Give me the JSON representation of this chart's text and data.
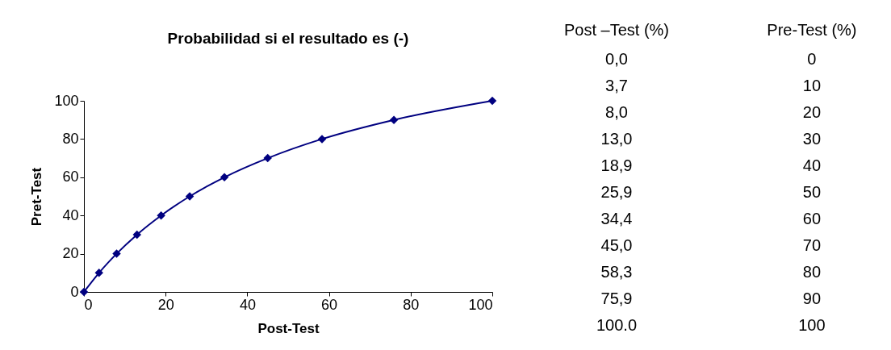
{
  "chart_data": {
    "type": "line",
    "title": "Probabilidad si el resultado es (-)",
    "xlabel": "Post-Test",
    "ylabel": "Pret-Test",
    "x": [
      0,
      3.7,
      8.0,
      13.0,
      18.9,
      25.9,
      34.4,
      45.0,
      58.3,
      75.9,
      100
    ],
    "series": [
      {
        "color": "#000080",
        "values": [
          0,
          10,
          20,
          30,
          40,
          50,
          60,
          70,
          80,
          90,
          100
        ]
      }
    ],
    "annotations": [
      "Post –Test (%)",
      "Pre-Test (%)",
      "0,0",
      "3,7",
      "8,0",
      "13,0",
      "18,9",
      "25,9",
      "34,4",
      "45,0",
      "58,3",
      "75,9",
      "100.0",
      "0",
      "10",
      "20",
      "30",
      "40",
      "50",
      "60",
      "70",
      "80",
      "90",
      "100"
    ],
    "xlim": [
      0,
      100
    ],
    "xticks": [
      0,
      20,
      40,
      60,
      80,
      100
    ],
    "ylim": [
      0,
      100
    ],
    "yticks": [
      0,
      20,
      40,
      60,
      80,
      100
    ],
    "grid": false,
    "marker": "diamond",
    "line_style": "solid"
  }
}
